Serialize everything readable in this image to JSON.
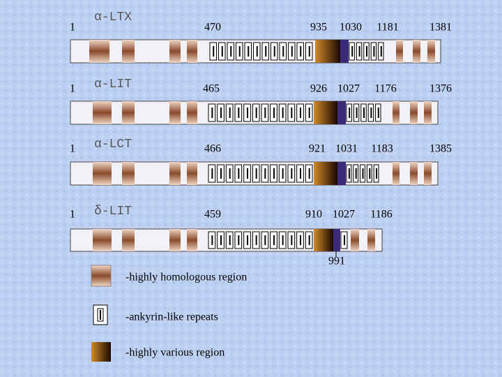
{
  "proteins": [
    {
      "name": "α-LTX",
      "positions": [
        1,
        470,
        935,
        1030,
        1181,
        1381
      ]
    },
    {
      "name": "α-LIT",
      "positions": [
        1,
        465,
        926,
        1027,
        1176,
        1376
      ]
    },
    {
      "name": "α-LCT",
      "positions": [
        1,
        466,
        921,
        1031,
        1183,
        1385
      ]
    },
    {
      "name": "δ-LIT",
      "positions": [
        1,
        459,
        910,
        1027,
        1186
      ],
      "below": [
        991
      ]
    }
  ],
  "legend": [
    {
      "label": "-highly homologous region"
    },
    {
      "label": "-ankyrin-like repeats"
    },
    {
      "label": "-highly various region"
    }
  ]
}
